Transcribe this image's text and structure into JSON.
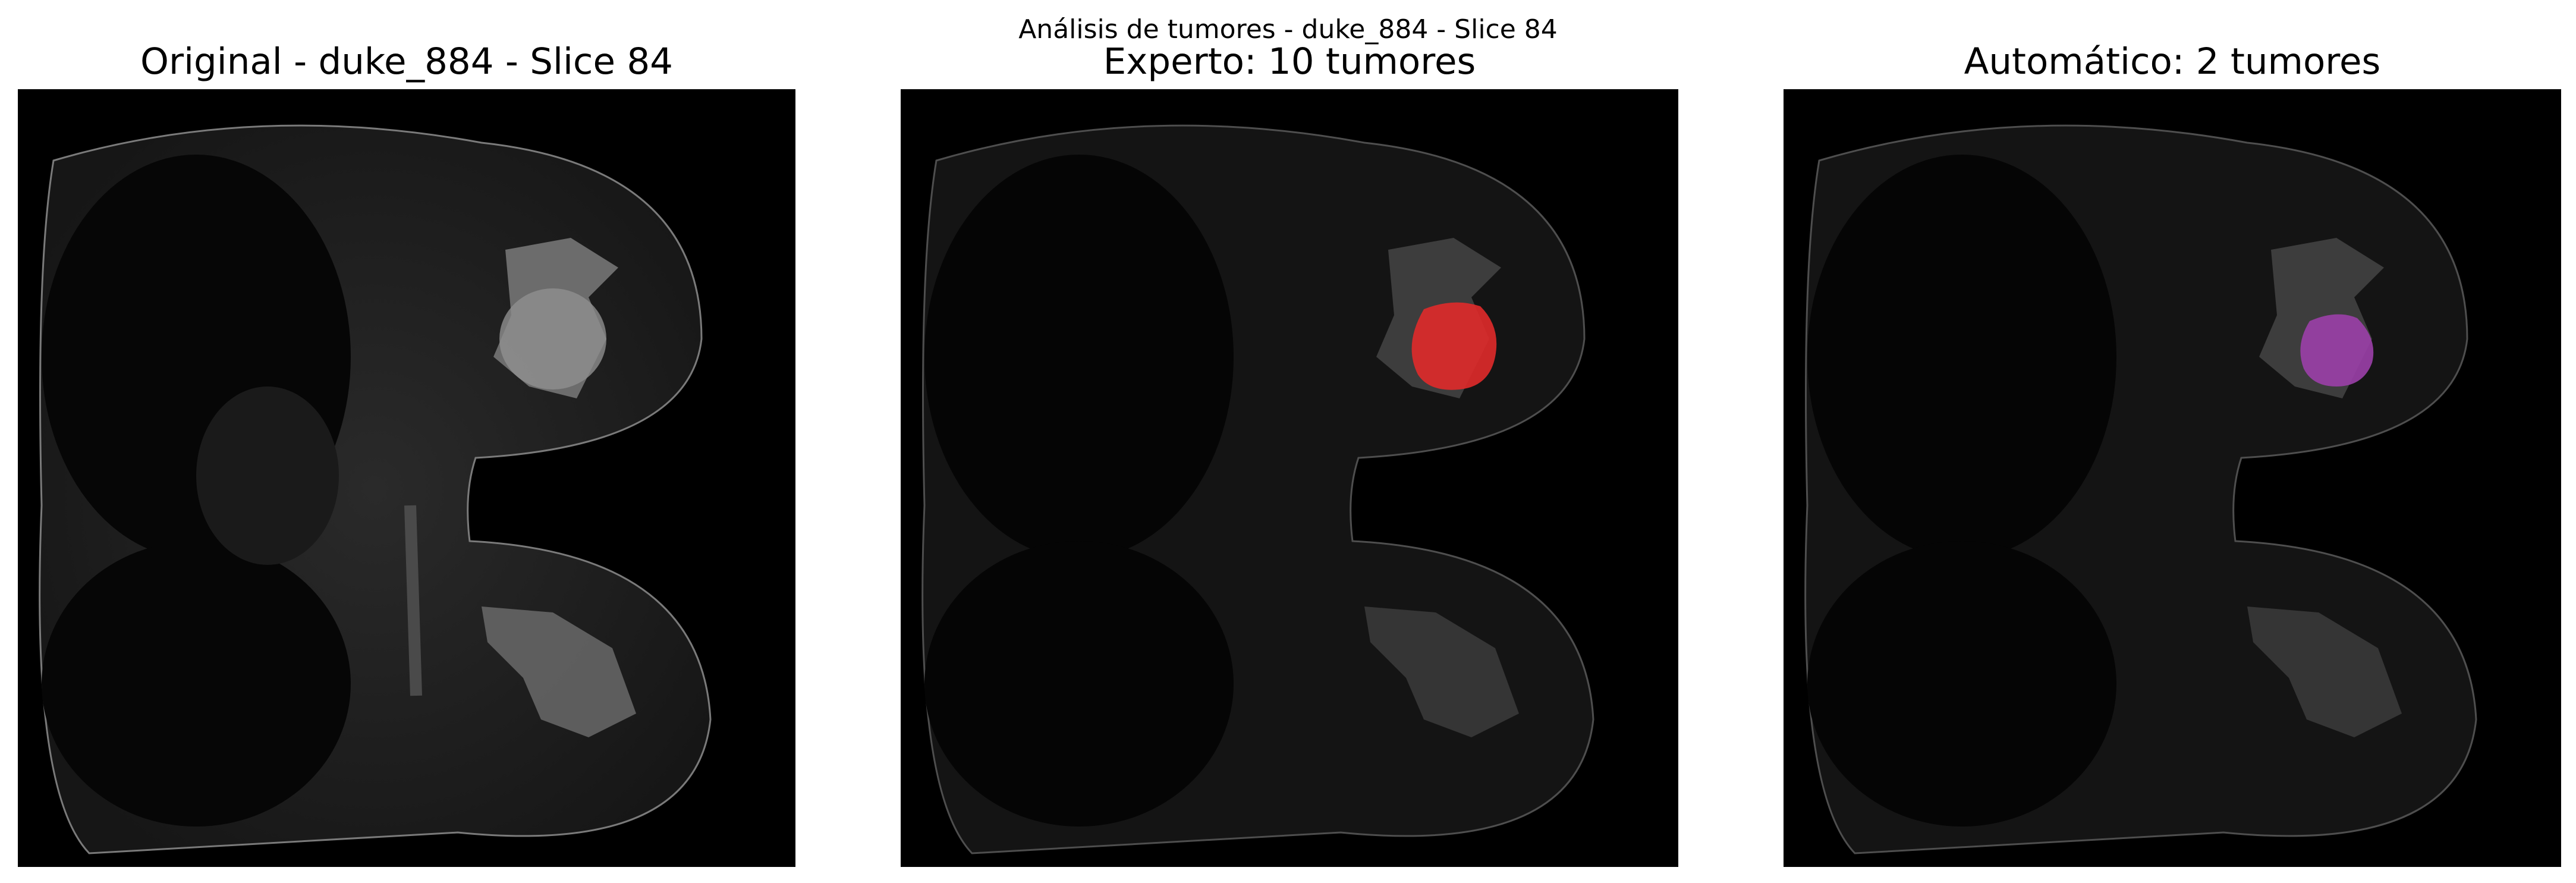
{
  "figure": {
    "suptitle": "Análisis de tumores - duke_884 - Slice 84"
  },
  "panels": [
    {
      "title": "Original - duke_884 - Slice 84",
      "overlay": "none"
    },
    {
      "title": "Experto: 10 tumores",
      "overlay": "tumor-mask",
      "overlay_color": "#e02a2a"
    },
    {
      "title": "Automático: 2 tumores",
      "overlay": "tumor-mask",
      "overlay_color": "#9b3fa8"
    }
  ]
}
